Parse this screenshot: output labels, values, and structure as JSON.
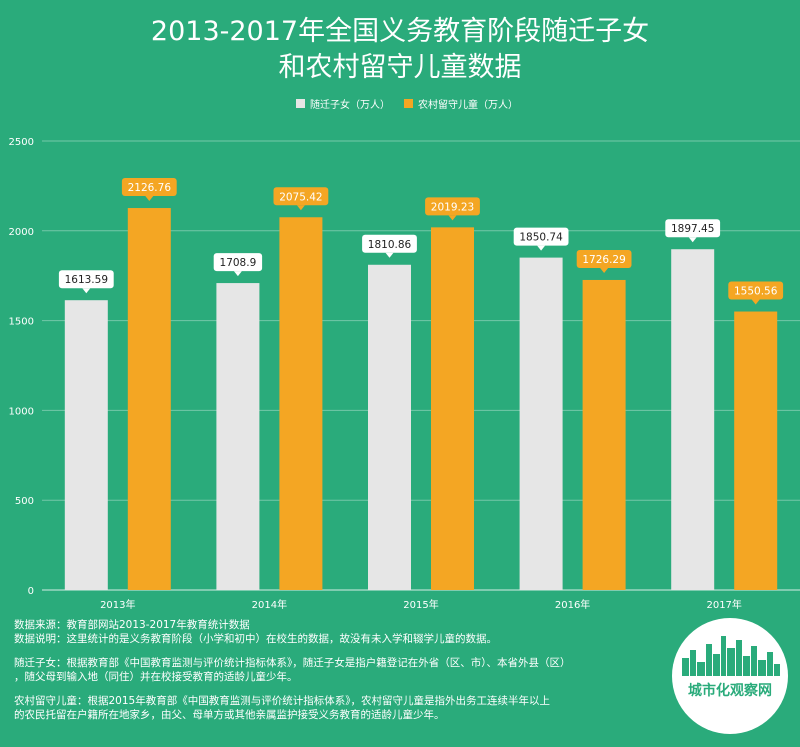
{
  "title_line1": "2013-2017年全国义务教育阶段随迁子女",
  "title_line2": "和农村留守儿童数据",
  "colors": {
    "background": "#2aab7b",
    "series1": "#e6e6e6",
    "series2": "#f4a623",
    "label_bg": "#ffffff",
    "grid": "#ffffff"
  },
  "chart_data": {
    "type": "bar",
    "categories": [
      "2013年",
      "2014年",
      "2015年",
      "2016年",
      "2017年"
    ],
    "series": [
      {
        "name": "随迁子女（万人）",
        "values": [
          1613.59,
          1708.9,
          1810.86,
          1850.74,
          1897.45
        ]
      },
      {
        "name": "农村留守儿童（万人）",
        "values": [
          2126.76,
          2075.42,
          2019.23,
          1726.29,
          1550.56
        ]
      }
    ],
    "y_ticks": [
      "0",
      "500",
      "1000",
      "1500",
      "2000",
      "2500"
    ],
    "ylim": [
      0,
      2500
    ],
    "grid": true,
    "legend_position": "top-center"
  },
  "notes": {
    "source": "数据来源：教育部网站2013-2017年教育统计数据",
    "explain": "数据说明：这里统计的是义务教育阶段（小学和初中）在校生的数据，故没有未入学和辍学儿童的数据。",
    "migrant_1": "随迁子女：根据教育部《中国教育监测与评价统计指标体系》，随迁子女是指户籍登记在外省（区、市）、本省外县（区）",
    "migrant_2": "，随父母到输入地（同住）并在校接受教育的适龄儿童少年。",
    "leftbehind_1": "农村留守儿童：根据2015年教育部《中国教育监测与评价统计指标体系》，农村留守儿童是指外出务工连续半年以上",
    "leftbehind_2": "的农民托留在户籍所在地家乡，由父、母单方或其他亲属监护接受义务教育的适龄儿童少年。"
  },
  "logo": {
    "text": "城市化观察网"
  }
}
